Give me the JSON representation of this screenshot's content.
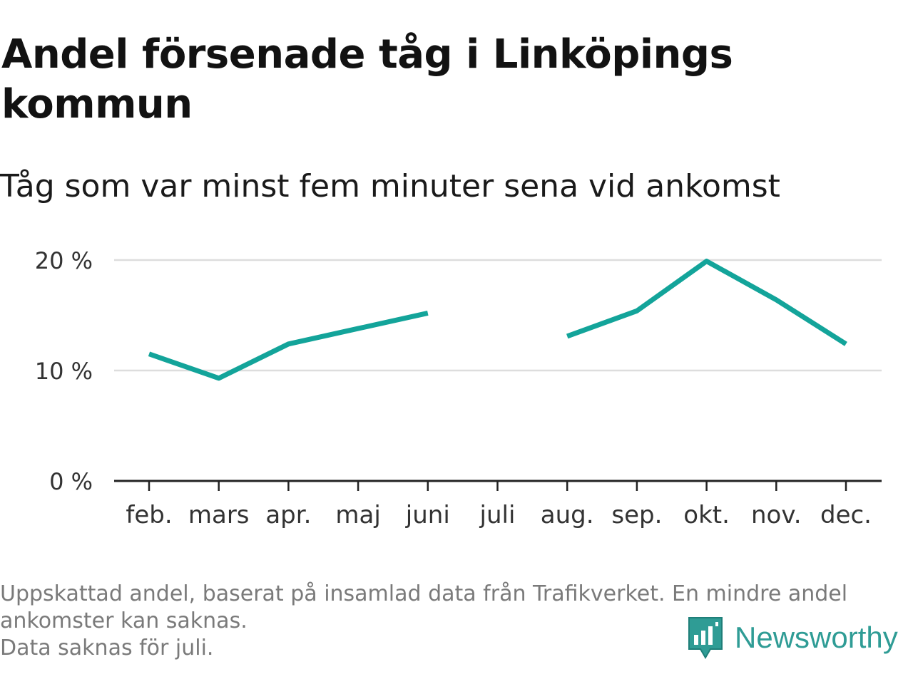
{
  "title": "Andel försenade tåg i Linköpings kommun",
  "subtitle": "Tåg som var minst fem minuter sena vid ankomst",
  "footnote": {
    "line1": "Uppskattad andel, baserat på insamlad data från Trafikverket. En mindre andel",
    "line2": "ankomster kan saknas.",
    "line3": "Data saknas för juli."
  },
  "brand": {
    "name": "Newsworthy",
    "icon": "newsworthy-logo-icon",
    "color": "#2f9c95"
  },
  "colors": {
    "line": "#13a49a",
    "grid": "#dddddd",
    "axis": "#222222",
    "tick_label": "#333333"
  },
  "chart_data": {
    "type": "line",
    "categories": [
      "feb.",
      "mars",
      "apr.",
      "maj",
      "juni",
      "juli",
      "aug.",
      "sep.",
      "okt.",
      "nov.",
      "dec."
    ],
    "series": [
      {
        "values": [
          11.5,
          9.3,
          12.4,
          13.8,
          15.2,
          null,
          13.1,
          15.4,
          19.9,
          16.4,
          12.4
        ]
      }
    ],
    "ylim": [
      0,
      20
    ],
    "yticks": [
      0,
      10,
      20
    ],
    "ytick_labels": [
      "0 %",
      "10 %",
      "20 %"
    ],
    "xlabel": "",
    "ylabel": "",
    "grid": true,
    "legend": "none"
  }
}
